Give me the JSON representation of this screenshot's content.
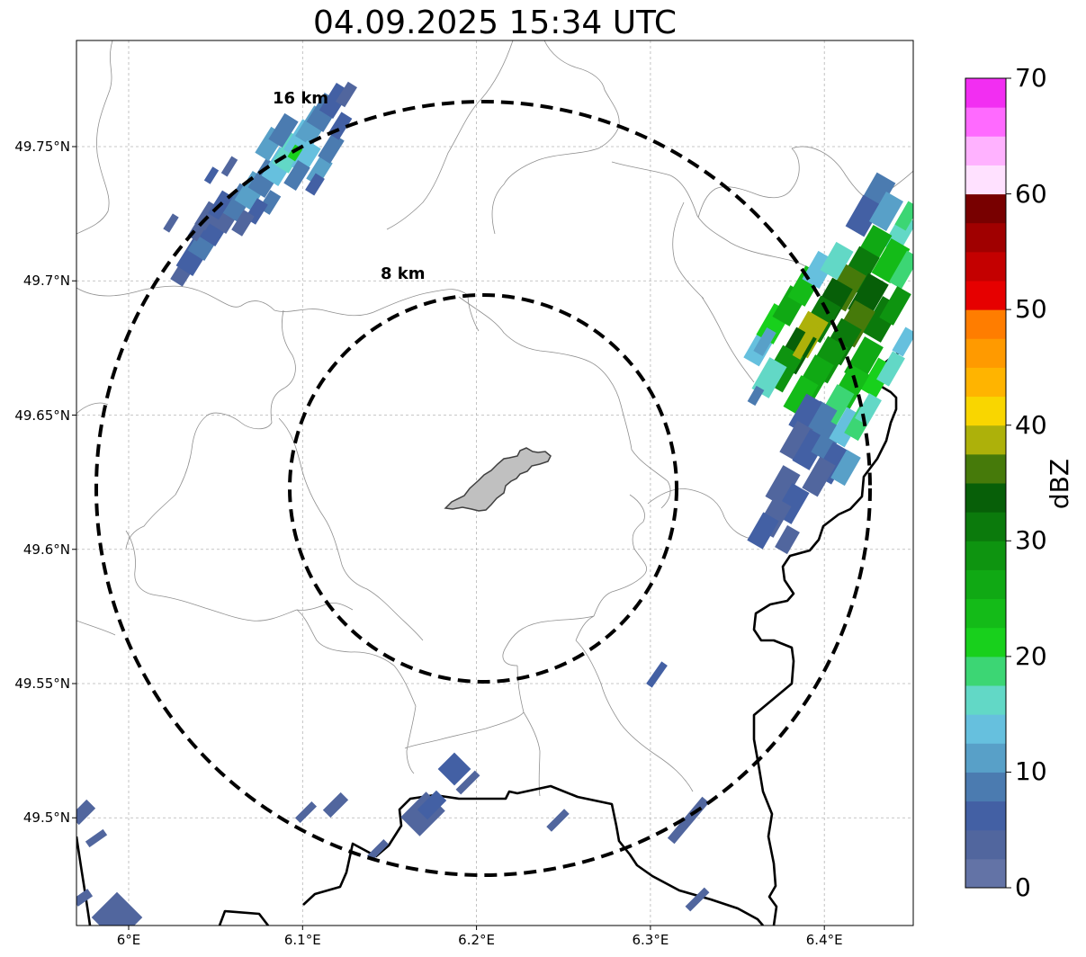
{
  "title": "04.09.2025 15:34 UTC",
  "axes": {
    "lon_ticks": [
      {
        "value": 6.0,
        "label": "6°E"
      },
      {
        "value": 6.1,
        "label": "6.1°E"
      },
      {
        "value": 6.2,
        "label": "6.2°E"
      },
      {
        "value": 6.3,
        "label": "6.3°E"
      },
      {
        "value": 6.4,
        "label": "6.4°E"
      }
    ],
    "lat_ticks": [
      {
        "value": 49.75,
        "label": "49.75°N"
      },
      {
        "value": 49.7,
        "label": "49.7°N"
      },
      {
        "value": 49.65,
        "label": "49.65°N"
      },
      {
        "value": 49.6,
        "label": "49.6°N"
      },
      {
        "value": 49.55,
        "label": "49.55°N"
      },
      {
        "value": 49.5,
        "label": "49.5°N"
      }
    ],
    "lon_range": [
      5.97,
      6.45
    ],
    "lat_range": [
      49.46,
      49.79
    ],
    "grid": true
  },
  "range_rings": [
    {
      "label": "8 km",
      "radius_km": 8
    },
    {
      "label": "16 km",
      "radius_km": 16
    }
  ],
  "center": {
    "lon": 6.203,
    "lat": 49.623
  },
  "colorbar": {
    "label": "dBZ",
    "min": 0,
    "max": 70,
    "ticks": [
      "0",
      "10",
      "20",
      "30",
      "40",
      "50",
      "60",
      "70"
    ],
    "colors": [
      "#6373a6",
      "#51669e",
      "#4360a4",
      "#4b7bb0",
      "#58a0c8",
      "#66c0de",
      "#62d8c6",
      "#3cd674",
      "#18d01c",
      "#14bb18",
      "#10a914",
      "#0e9410",
      "#0b7a0c",
      "#075f08",
      "#467a0a",
      "#adb10a",
      "#f9d600",
      "#ffb400",
      "#ff9a00",
      "#ff7d00",
      "#e60000",
      "#c40000",
      "#a00000",
      "#780000",
      "#ffe1ff",
      "#ffb2ff",
      "#ff6aff",
      "#f22ef2"
    ]
  }
}
